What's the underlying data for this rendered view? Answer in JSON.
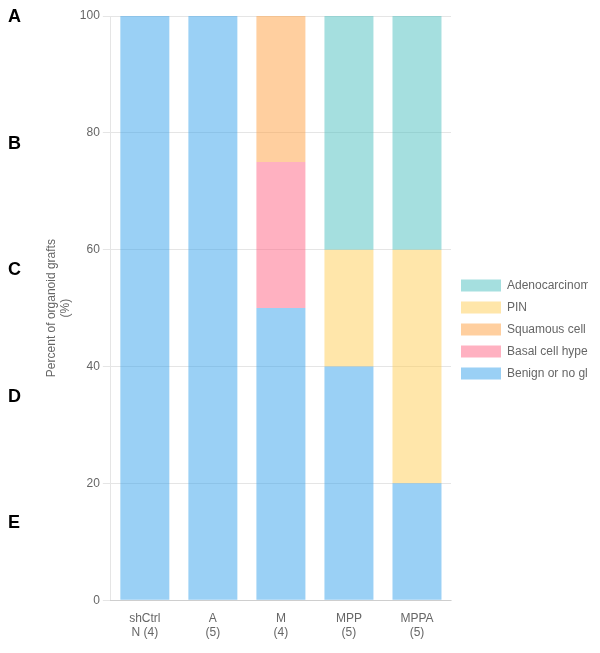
{
  "chart_data": {
    "type": "bar",
    "categories": [
      "shCtrl\nN (4)",
      "A\n(5)",
      "M\n(4)",
      "MPP\n(5)",
      "MPPA\n(5)"
    ],
    "series": [
      {
        "name": "Benign or no gland",
        "values": [
          100,
          100,
          50,
          40,
          20
        ]
      },
      {
        "name": "Basal cell hyperplasia",
        "values": [
          0,
          0,
          25,
          0,
          0
        ]
      },
      {
        "name": "Squamous cell metaplasia",
        "values": [
          0,
          0,
          25,
          0,
          0
        ]
      },
      {
        "name": "PIN",
        "values": [
          0,
          0,
          0,
          20,
          40
        ]
      },
      {
        "name": "Adenocarcinoma",
        "values": [
          0,
          0,
          0,
          40,
          40
        ]
      }
    ],
    "ylabel": "Percent of organoid grafts\n(%)",
    "ylim": [
      0,
      100
    ],
    "yticks": [
      0,
      20,
      40,
      60,
      80,
      100
    ],
    "stacked": true,
    "grid": true,
    "legend": "right",
    "annotations": [
      "A",
      "B",
      "C",
      "D",
      "E"
    ]
  }
}
